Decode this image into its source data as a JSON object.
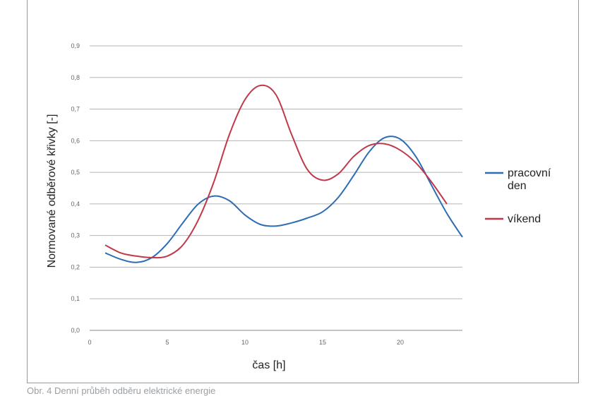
{
  "chart_data": {
    "type": "line",
    "title": "",
    "xlabel": "čas [h]",
    "ylabel": "Normované odběrové křivky [-]",
    "xlim": [
      0,
      24
    ],
    "ylim": [
      0,
      0.9
    ],
    "x_ticks": [
      "0",
      "5",
      "10",
      "15",
      "20"
    ],
    "y_ticks": [
      "0,0",
      "0,1",
      "0,2",
      "0,3",
      "0,4",
      "0,5",
      "0,6",
      "0,7",
      "0,8",
      "0,9"
    ],
    "grid": true,
    "legend_position": "right",
    "series": [
      {
        "name": "pracovní den",
        "name_lines": [
          "pracovní",
          "den"
        ],
        "color": "#2e6db4",
        "x": [
          1,
          2,
          3,
          4,
          5,
          6,
          7,
          8,
          9,
          10,
          11,
          12,
          13,
          14,
          15,
          16,
          17,
          18,
          19,
          20,
          21,
          22,
          23,
          24
        ],
        "y": [
          0.245,
          0.225,
          0.215,
          0.23,
          0.275,
          0.34,
          0.4,
          0.425,
          0.41,
          0.365,
          0.335,
          0.33,
          0.34,
          0.355,
          0.375,
          0.42,
          0.49,
          0.565,
          0.61,
          0.605,
          0.55,
          0.46,
          0.37,
          0.295
        ]
      },
      {
        "name": "víkend",
        "name_lines": [
          "víkend"
        ],
        "color": "#c0394b",
        "x": [
          1,
          2,
          3,
          4,
          5,
          6,
          7,
          8,
          9,
          10,
          11,
          12,
          13,
          14,
          15,
          16,
          17,
          18,
          19,
          20,
          21,
          22,
          23
        ],
        "y": [
          0.27,
          0.245,
          0.235,
          0.23,
          0.235,
          0.27,
          0.35,
          0.47,
          0.62,
          0.73,
          0.775,
          0.745,
          0.62,
          0.51,
          0.475,
          0.495,
          0.55,
          0.585,
          0.59,
          0.57,
          0.53,
          0.47,
          0.4
        ]
      }
    ]
  },
  "caption": "Obr. 4 Denní průběh odběru elektrické energie"
}
